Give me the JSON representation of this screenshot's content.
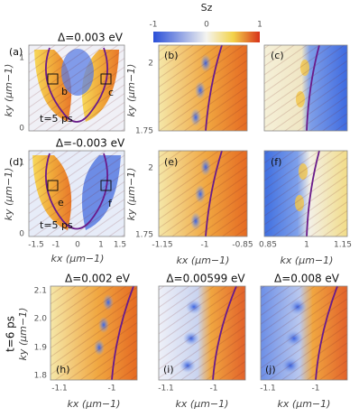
{
  "colorbar": {
    "label": "Sz",
    "ticks": [
      "-1",
      "0",
      "1"
    ]
  },
  "row1": {
    "a": {
      "title": "Δ=0.003 eV",
      "label": "(a)",
      "box_b": "b",
      "box_c": "c",
      "time": "t=5 ps",
      "yticks": [
        "1",
        "0"
      ],
      "ylabel": "ky (μm−1)"
    },
    "b": {
      "label": "(b)",
      "yticks": [
        "2",
        "1.75"
      ],
      "ylabel": "ky (μm−1)"
    },
    "c": {
      "label": "(c)"
    }
  },
  "row2": {
    "d": {
      "title": "Δ=-0.003 eV",
      "label": "(d)",
      "box_e": "e",
      "box_f": "f",
      "time": "t=5 ps",
      "yticks": [
        "1",
        "0"
      ],
      "xticks": [
        "-1.5",
        "-1",
        "0",
        "1",
        "1.5"
      ],
      "ylabel": "ky (μm−1)",
      "xlabel": "kx (μm−1)"
    },
    "e": {
      "label": "(e)",
      "yticks": [
        "2",
        "1.75"
      ],
      "xticks": [
        "-1.15",
        "-1",
        "-0.85"
      ],
      "ylabel": "ky (μm−1)",
      "xlabel": "kx (μm−1)"
    },
    "f": {
      "label": "(f)",
      "xticks": [
        "0.85",
        "1",
        "1.15"
      ],
      "xlabel": "kx (μm−1)"
    }
  },
  "row3": {
    "side": "t=6 ps",
    "h": {
      "title": "Δ=0.002 eV",
      "label": "(h)",
      "yticks": [
        "2.1",
        "2.0",
        "1.9",
        "1.8"
      ],
      "xticks": [
        "-1.1",
        "-1"
      ],
      "ylabel": "ky (μm−1)",
      "xlabel": "kx (μm−1)"
    },
    "i": {
      "title": "Δ=0.00599 eV",
      "label": "(i)",
      "xticks": [
        "-1.1",
        "-1"
      ],
      "xlabel": "kx (μm−1)"
    },
    "j": {
      "title": "Δ=0.008 eV",
      "label": "(j)",
      "xticks": [
        "-1.1",
        "-1"
      ],
      "xlabel": "kx (μm−1)"
    }
  }
}
